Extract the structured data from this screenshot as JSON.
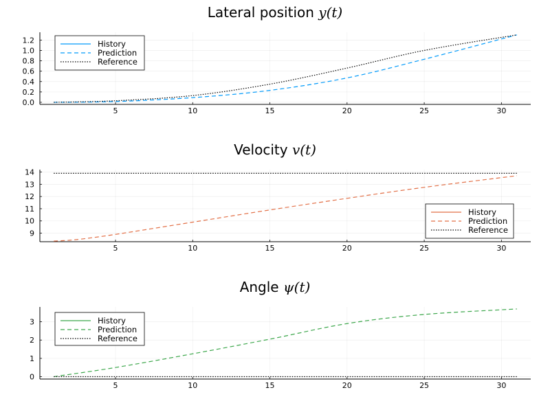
{
  "chart_data": [
    {
      "type": "line",
      "title": "Lateral position",
      "title_math": "y(t)",
      "xlabel": "",
      "ylabel": "",
      "xlim": [
        0.1,
        31.9
      ],
      "ylim": [
        -0.04,
        1.35
      ],
      "xticks": [
        5,
        10,
        15,
        20,
        25,
        30
      ],
      "yticks": [
        0.0,
        0.2,
        0.4,
        0.6,
        0.8,
        1.0,
        1.2
      ],
      "ytick_labels": [
        "0.0",
        "0.2",
        "0.4",
        "0.6",
        "0.8",
        "1.0",
        "1.2"
      ],
      "grid": true,
      "legend_position": "top-left",
      "series": [
        {
          "name": "History",
          "style": "solid",
          "color": "#009AFA",
          "x": [],
          "y": []
        },
        {
          "name": "Prediction",
          "style": "dashed",
          "color": "#009AFA",
          "x": [
            1,
            5,
            10,
            15,
            20,
            25,
            31
          ],
          "y": [
            0.0,
            0.015,
            0.09,
            0.23,
            0.47,
            0.83,
            1.3
          ]
        },
        {
          "name": "Reference",
          "style": "dotted",
          "color": "#000000",
          "x": [
            1,
            5,
            10,
            15,
            20,
            25,
            31
          ],
          "y": [
            0.0,
            0.03,
            0.13,
            0.35,
            0.66,
            1.0,
            1.3
          ]
        }
      ]
    },
    {
      "type": "line",
      "title": "Velocity",
      "title_math": "v(t)",
      "xlabel": "",
      "ylabel": "",
      "xlim": [
        0.1,
        31.9
      ],
      "ylim": [
        8.3,
        14.2
      ],
      "xticks": [
        5,
        10,
        15,
        20,
        25,
        30
      ],
      "yticks": [
        9,
        10,
        11,
        12,
        13,
        14
      ],
      "ytick_labels": [
        "9",
        "10",
        "11",
        "12",
        "13",
        "14"
      ],
      "grid": true,
      "legend_position": "bottom-right",
      "series": [
        {
          "name": "History",
          "style": "solid",
          "color": "#E26F46",
          "x": [],
          "y": []
        },
        {
          "name": "Prediction",
          "style": "dashed",
          "color": "#E26F46",
          "x": [
            1,
            2,
            3,
            5,
            10,
            15,
            20,
            25,
            31
          ],
          "y": [
            8.35,
            8.42,
            8.55,
            8.9,
            9.9,
            10.9,
            11.85,
            12.75,
            13.7
          ]
        },
        {
          "name": "Reference",
          "style": "dotted",
          "color": "#000000",
          "x": [
            1,
            31
          ],
          "y": [
            13.9,
            13.9
          ]
        }
      ]
    },
    {
      "type": "line",
      "title": "Angle",
      "title_math": "ψ(t)",
      "xlabel": "",
      "ylabel": "",
      "xlim": [
        0.1,
        31.9
      ],
      "ylim": [
        -0.13,
        3.81
      ],
      "xticks": [
        5,
        10,
        15,
        20,
        25,
        30
      ],
      "yticks": [
        0,
        1,
        2,
        3
      ],
      "ytick_labels": [
        "0",
        "1",
        "2",
        "3"
      ],
      "grid": true,
      "legend_position": "top-left",
      "series": [
        {
          "name": "History",
          "style": "solid",
          "color": "#3BA64A",
          "x": [],
          "y": []
        },
        {
          "name": "Prediction",
          "style": "dashed",
          "color": "#3BA64A",
          "x": [
            1,
            5,
            10,
            15,
            20,
            25,
            31
          ],
          "y": [
            0.0,
            0.5,
            1.25,
            2.05,
            2.9,
            3.4,
            3.7
          ]
        },
        {
          "name": "Reference",
          "style": "dotted",
          "color": "#000000",
          "x": [
            1,
            31
          ],
          "y": [
            0.0,
            0.0
          ]
        }
      ]
    }
  ]
}
